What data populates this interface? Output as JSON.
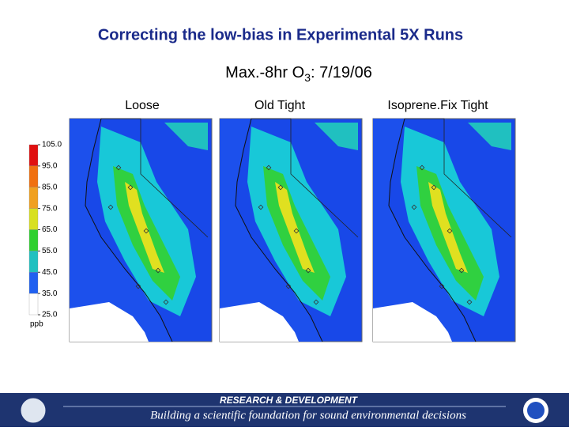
{
  "header": {
    "title": "Correcting the low-bias in Experimental 5X Runs",
    "subtitle": {
      "prefix": "Max.-8hr  O",
      "subscript": "3",
      "suffix": ":  7/19/06"
    }
  },
  "panels": [
    {
      "label": "Loose"
    },
    {
      "label": "Old Tight"
    },
    {
      "label": "Isoprene.Fix Tight"
    }
  ],
  "colorbar": {
    "unit": "ppb",
    "ticks": [
      {
        "value": 105,
        "label": "105.0"
      },
      {
        "value": 95,
        "label": "95.0"
      },
      {
        "value": 85,
        "label": "85.0"
      },
      {
        "value": 75,
        "label": "75.0"
      },
      {
        "value": 65,
        "label": "65.0"
      },
      {
        "value": 55,
        "label": "55.0"
      },
      {
        "value": 45,
        "label": "45.0"
      },
      {
        "value": 35,
        "label": "35.0"
      },
      {
        "value": 25,
        "label": "25.0"
      }
    ],
    "colors": [
      "#e01010",
      "#f07010",
      "#f0a020",
      "#d8e020",
      "#30d030",
      "#20c0c0",
      "#2060f0",
      "#ffffff"
    ]
  },
  "footer": {
    "heading": "RESEARCH & DEVELOPMENT",
    "tagline": "Building a scientific foundation for sound environmental decisions"
  }
}
